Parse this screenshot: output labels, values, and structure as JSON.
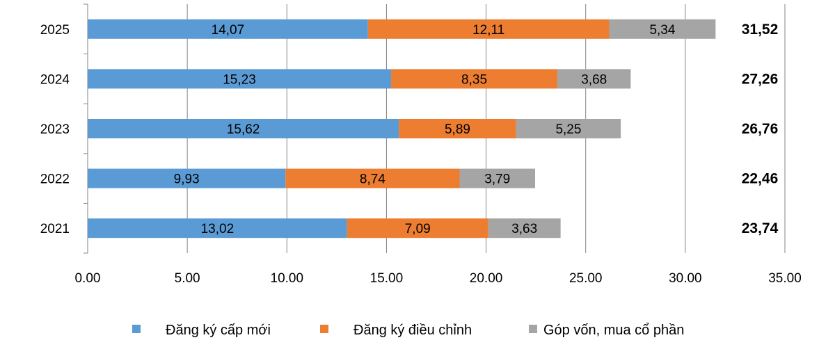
{
  "chart_data": {
    "type": "bar",
    "orientation": "horizontal",
    "stacked": true,
    "categories": [
      "2025",
      "2024",
      "2023",
      "2022",
      "2021"
    ],
    "series": [
      {
        "name": "Đăng ký cấp mới",
        "color": "#5B9BD5",
        "values": [
          14.07,
          15.23,
          15.62,
          9.93,
          13.02
        ],
        "labels": [
          "14,07",
          "15,23",
          "15,62",
          "9,93",
          "13,02"
        ]
      },
      {
        "name": "Đăng ký điều chỉnh",
        "color": "#ED7D31",
        "values": [
          12.11,
          8.35,
          5.89,
          8.74,
          7.09
        ],
        "labels": [
          "12,11",
          "8,35",
          "5,89",
          "8,74",
          "7,09"
        ]
      },
      {
        "name": "Góp vốn, mua cổ phần",
        "color": "#A5A5A5",
        "values": [
          5.34,
          3.68,
          5.25,
          3.79,
          3.63
        ],
        "labels": [
          "5,34",
          "3,68",
          "5,25",
          "3,79",
          "3,63"
        ]
      }
    ],
    "totals": [
      "31,52",
      "27,26",
      "26,76",
      "22,46",
      "23,74"
    ],
    "xlim": [
      0,
      35
    ],
    "xticks": [
      "0.00",
      "5.00",
      "10.00",
      "15.00",
      "20.00",
      "25.00",
      "30.00",
      "35.00"
    ],
    "grid": "vertical",
    "legend_position": "bottom",
    "title": "",
    "xlabel": "",
    "ylabel": ""
  }
}
